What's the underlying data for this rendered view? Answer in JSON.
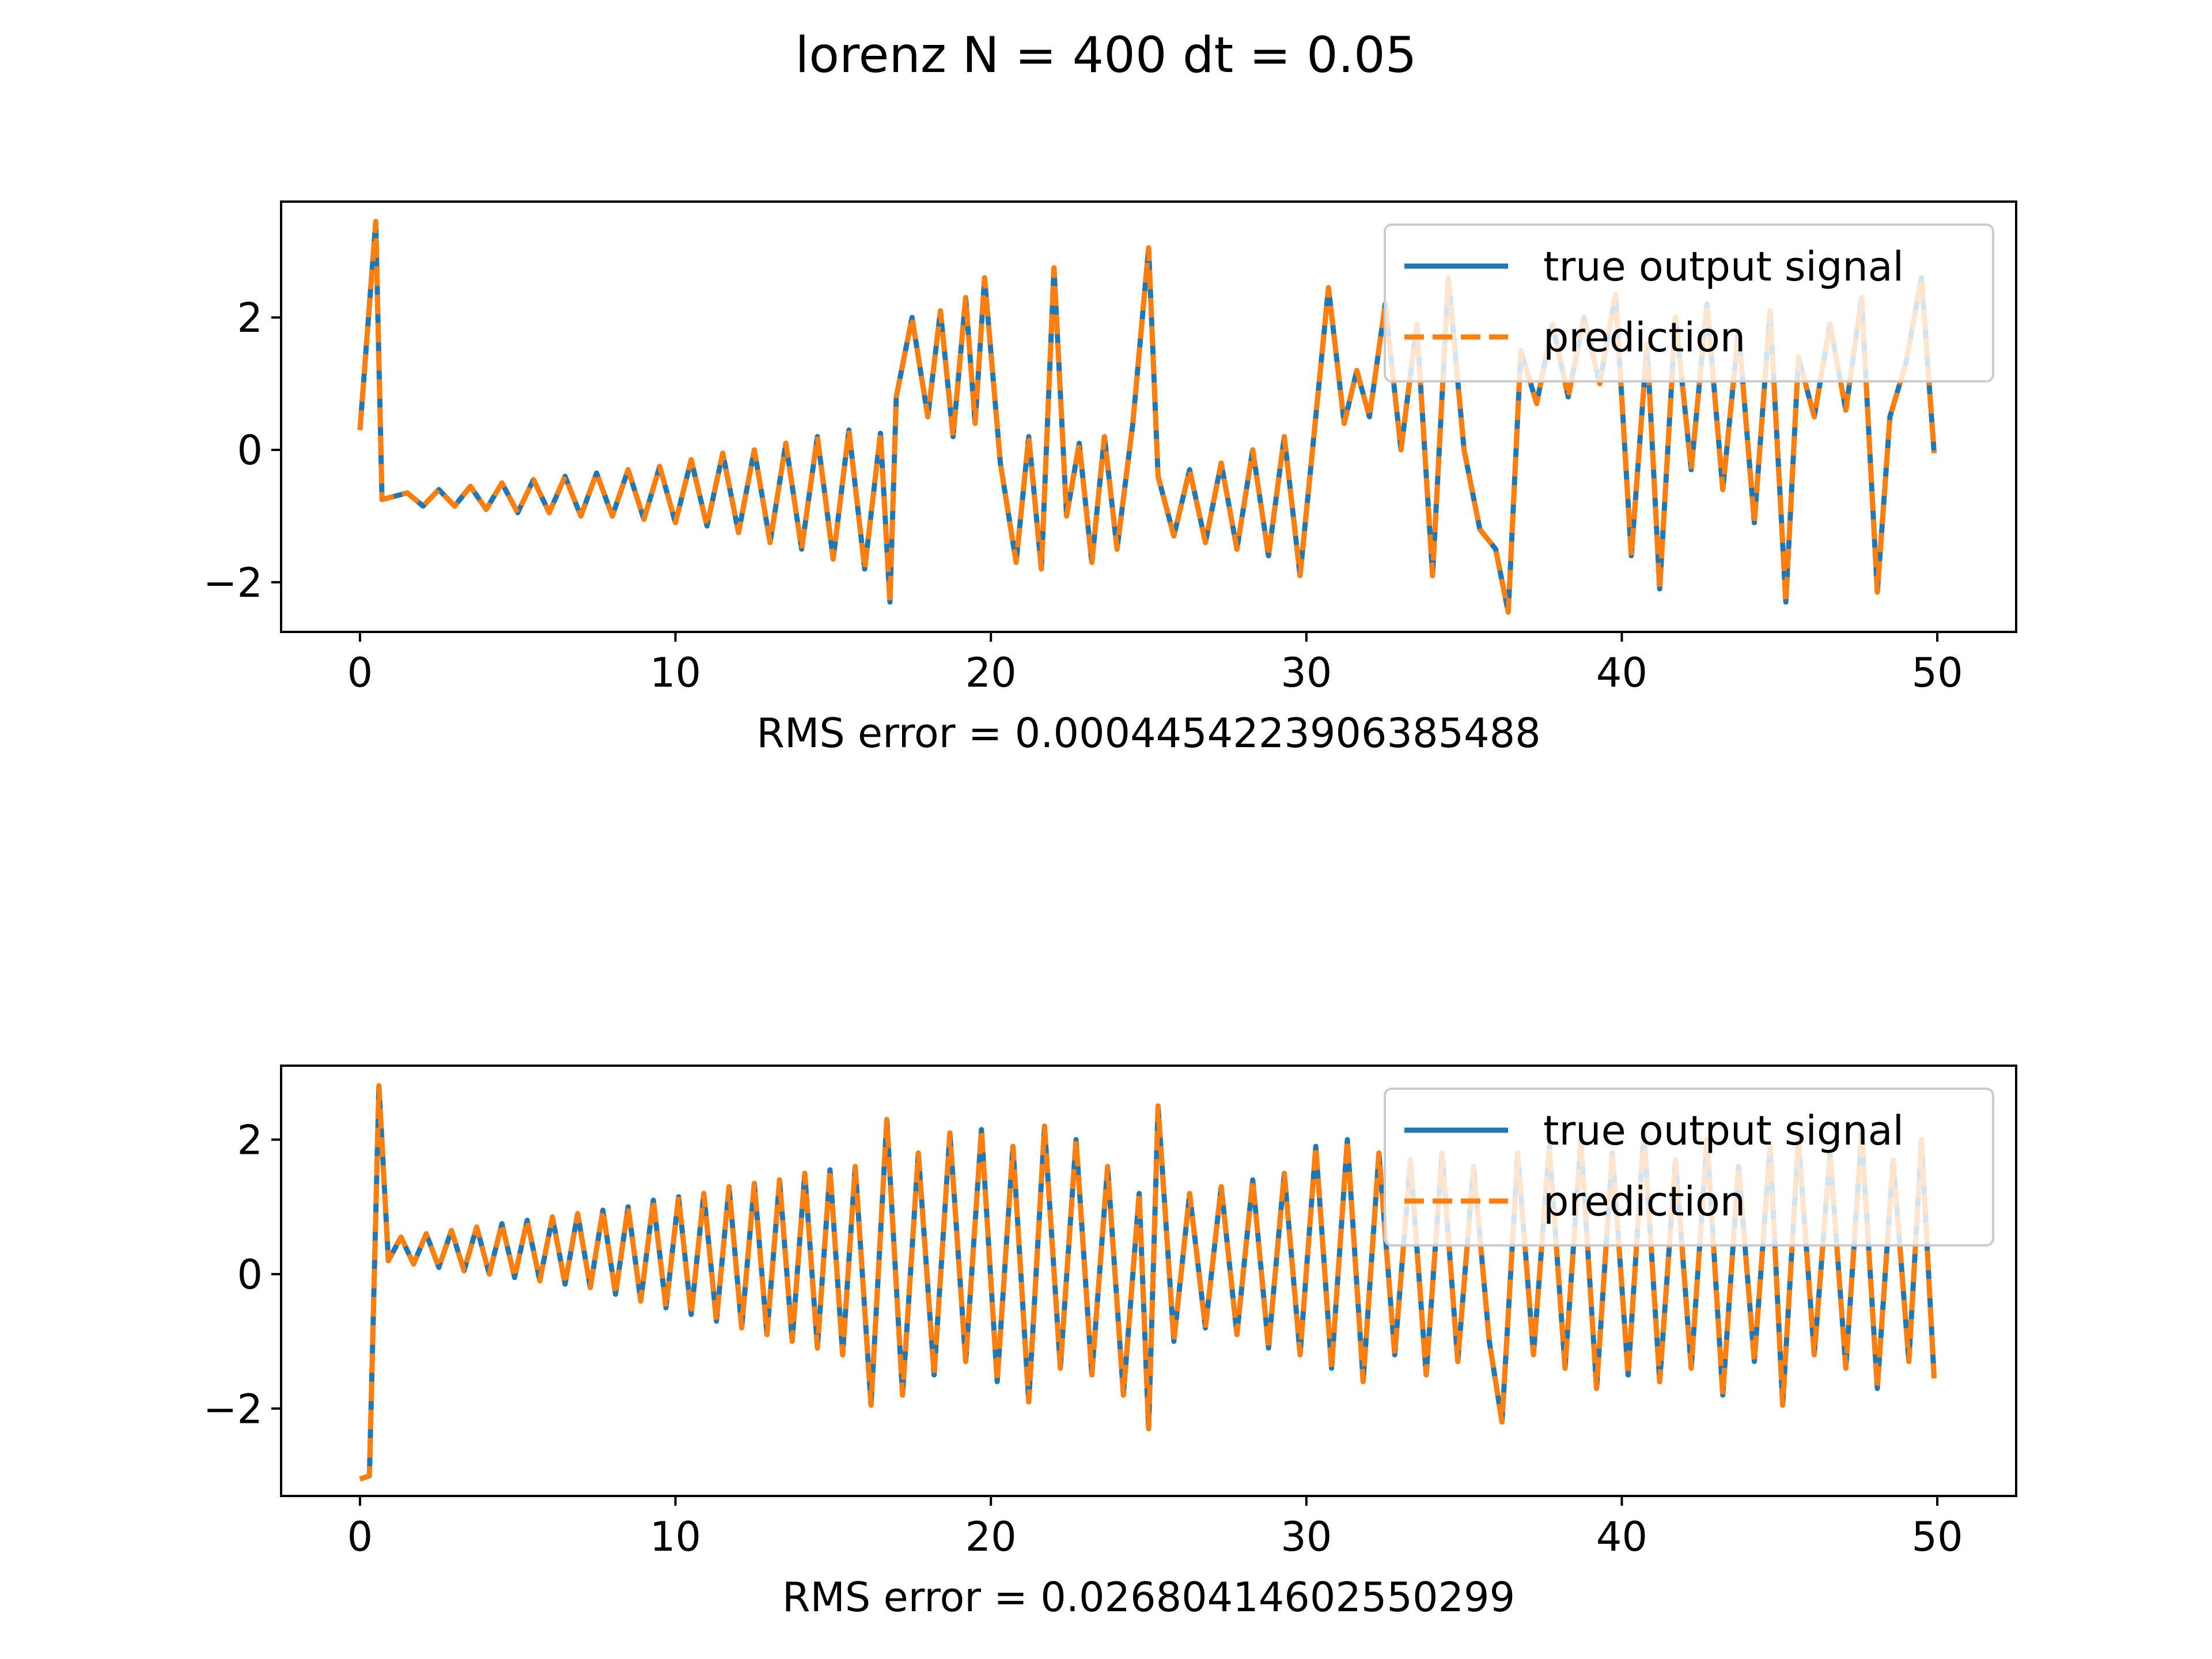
{
  "figure": {
    "title": "lorenz N = 400 dt = 0.05"
  },
  "colors": {
    "true_signal": "#1f77b4",
    "prediction": "#ff7f0e",
    "frame": "#000000",
    "legend_edge": "#cccccc"
  },
  "chart_data": [
    {
      "type": "line",
      "xlabel": "RMS error = 0.00044542239063854​88",
      "ylabel": "",
      "xlim": [
        -2.5,
        52.5
      ],
      "ylim": [
        -2.75,
        3.75
      ],
      "xticks": [
        0,
        10,
        20,
        30,
        40,
        50
      ],
      "xtick_labels": [
        "0",
        "10",
        "20",
        "30",
        "40",
        "50"
      ],
      "yticks": [
        -2,
        0,
        2
      ],
      "ytick_labels": [
        "−2",
        "0",
        "2"
      ],
      "grid": false,
      "legend_position": "upper-right",
      "legend": [
        "true output signal",
        "prediction"
      ],
      "x": [
        0.0,
        0.5,
        0.7,
        1.5,
        2.0,
        2.5,
        3.0,
        3.5,
        4.0,
        4.5,
        5.0,
        5.5,
        6.0,
        6.5,
        7.0,
        7.5,
        8.0,
        8.5,
        9.0,
        9.5,
        10.0,
        10.5,
        11.0,
        11.5,
        12.0,
        12.5,
        13.0,
        13.5,
        14.0,
        14.5,
        15.0,
        15.5,
        16.0,
        16.5,
        16.8,
        17.0,
        17.5,
        18.0,
        18.4,
        18.8,
        19.2,
        19.5,
        19.8,
        20.3,
        20.8,
        21.2,
        21.6,
        22.0,
        22.4,
        22.8,
        23.2,
        23.6,
        24.0,
        24.5,
        25.0,
        25.3,
        25.8,
        26.3,
        26.8,
        27.3,
        27.8,
        28.3,
        28.8,
        29.3,
        29.8,
        30.3,
        30.7,
        31.2,
        31.6,
        32.0,
        32.5,
        33.0,
        33.5,
        34.0,
        34.5,
        35.0,
        35.5,
        36.0,
        36.4,
        36.8,
        37.3,
        37.8,
        38.3,
        38.8,
        39.3,
        39.8,
        40.3,
        40.8,
        41.2,
        41.7,
        42.2,
        42.7,
        43.2,
        43.7,
        44.2,
        44.7,
        45.2,
        45.6,
        46.1,
        46.6,
        47.1,
        47.6,
        48.1,
        48.5,
        49.0,
        49.5,
        49.9
      ],
      "series": [
        {
          "name": "true output signal",
          "values": [
            0.3,
            3.45,
            -0.75,
            -0.65,
            -0.85,
            -0.6,
            -0.85,
            -0.55,
            -0.9,
            -0.5,
            -0.95,
            -0.45,
            -0.95,
            -0.4,
            -1.0,
            -0.35,
            -1.0,
            -0.3,
            -1.05,
            -0.25,
            -1.1,
            -0.15,
            -1.15,
            -0.05,
            -1.25,
            0.0,
            -1.4,
            0.1,
            -1.5,
            0.2,
            -1.65,
            0.3,
            -1.8,
            0.25,
            -2.3,
            0.8,
            2.0,
            0.5,
            2.1,
            0.2,
            2.3,
            0.4,
            2.6,
            -0.2,
            -1.7,
            0.2,
            -1.8,
            2.75,
            -1.0,
            0.1,
            -1.7,
            0.2,
            -1.5,
            0.4,
            3.05,
            -0.4,
            -1.3,
            -0.3,
            -1.4,
            -0.2,
            -1.5,
            0.0,
            -1.6,
            0.2,
            -1.9,
            0.5,
            2.45,
            0.4,
            1.2,
            0.5,
            2.2,
            0.0,
            1.9,
            -1.9,
            2.6,
            0.0,
            -1.2,
            -1.5,
            -2.45,
            1.5,
            0.7,
            1.9,
            0.8,
            2.0,
            1.0,
            2.35,
            -1.6,
            1.6,
            -2.1,
            2.0,
            -0.3,
            2.2,
            -0.6,
            1.8,
            -1.1,
            2.1,
            -2.3,
            1.4,
            0.5,
            1.9,
            0.6,
            2.3,
            -2.15,
            0.5,
            1.3,
            2.6,
            -0.05
          ]
        },
        {
          "name": "prediction",
          "values": [
            0.3,
            3.45,
            -0.75,
            -0.65,
            -0.85,
            -0.6,
            -0.85,
            -0.55,
            -0.9,
            -0.5,
            -0.95,
            -0.45,
            -0.95,
            -0.4,
            -1.0,
            -0.35,
            -1.0,
            -0.3,
            -1.05,
            -0.25,
            -1.1,
            -0.15,
            -1.15,
            -0.05,
            -1.25,
            0.0,
            -1.4,
            0.1,
            -1.5,
            0.2,
            -1.65,
            0.3,
            -1.8,
            0.25,
            -2.3,
            0.8,
            2.0,
            0.5,
            2.1,
            0.2,
            2.3,
            0.4,
            2.6,
            -0.2,
            -1.7,
            0.2,
            -1.8,
            2.75,
            -1.0,
            0.1,
            -1.7,
            0.2,
            -1.5,
            0.4,
            3.05,
            -0.4,
            -1.3,
            -0.3,
            -1.4,
            -0.2,
            -1.5,
            0.0,
            -1.6,
            0.2,
            -1.9,
            0.5,
            2.45,
            0.4,
            1.2,
            0.5,
            2.2,
            0.0,
            1.9,
            -1.9,
            2.6,
            0.0,
            -1.2,
            -1.5,
            -2.45,
            1.5,
            0.7,
            1.9,
            0.8,
            2.0,
            1.0,
            2.35,
            -1.6,
            1.6,
            -2.1,
            2.0,
            -0.3,
            2.2,
            -0.6,
            1.8,
            -1.1,
            2.1,
            -2.3,
            1.4,
            0.5,
            1.9,
            0.6,
            2.3,
            -2.15,
            0.5,
            1.3,
            2.6,
            -0.05
          ]
        }
      ]
    },
    {
      "type": "line",
      "xlabel": "RMS error = 0.02680414602550299",
      "ylabel": "",
      "xlim": [
        -2.5,
        52.5
      ],
      "ylim": [
        -3.3,
        3.1
      ],
      "xticks": [
        0,
        10,
        20,
        30,
        40,
        50
      ],
      "xtick_labels": [
        "0",
        "10",
        "20",
        "30",
        "40",
        "50"
      ],
      "yticks": [
        -2,
        0,
        2
      ],
      "ytick_labels": [
        "−2",
        "0",
        "2"
      ],
      "grid": false,
      "legend_position": "upper-right",
      "legend": [
        "true output signal",
        "prediction"
      ],
      "x": [
        0.0,
        0.3,
        0.6,
        0.9,
        1.3,
        1.7,
        2.1,
        2.5,
        2.9,
        3.3,
        3.7,
        4.1,
        4.5,
        4.9,
        5.3,
        5.7,
        6.1,
        6.5,
        6.9,
        7.3,
        7.7,
        8.1,
        8.5,
        8.9,
        9.3,
        9.7,
        10.1,
        10.5,
        10.9,
        11.3,
        11.7,
        12.1,
        12.5,
        12.9,
        13.3,
        13.7,
        14.1,
        14.5,
        14.9,
        15.3,
        15.7,
        16.2,
        16.7,
        17.2,
        17.7,
        18.2,
        18.7,
        19.2,
        19.7,
        20.2,
        20.7,
        21.2,
        21.7,
        22.2,
        22.7,
        23.2,
        23.7,
        24.2,
        24.7,
        25.0,
        25.3,
        25.8,
        26.3,
        26.8,
        27.3,
        27.8,
        28.3,
        28.8,
        29.3,
        29.8,
        30.3,
        30.8,
        31.3,
        31.8,
        32.3,
        32.8,
        33.3,
        33.8,
        34.3,
        34.8,
        35.3,
        35.8,
        36.2,
        36.7,
        37.2,
        37.7,
        38.2,
        38.7,
        39.2,
        39.7,
        40.2,
        40.7,
        41.2,
        41.7,
        42.2,
        42.7,
        43.2,
        43.7,
        44.2,
        44.7,
        45.1,
        45.6,
        46.1,
        46.6,
        47.1,
        47.6,
        48.1,
        48.6,
        49.1,
        49.5,
        49.9
      ],
      "series": [
        {
          "name": "true output signal",
          "values": [
            -3.05,
            -3.0,
            2.8,
            0.2,
            0.55,
            0.15,
            0.6,
            0.1,
            0.65,
            0.05,
            0.7,
            0.0,
            0.75,
            -0.05,
            0.8,
            -0.1,
            0.85,
            -0.15,
            0.9,
            -0.2,
            0.95,
            -0.3,
            1.0,
            -0.4,
            1.1,
            -0.5,
            1.15,
            -0.6,
            1.2,
            -0.7,
            1.3,
            -0.8,
            1.35,
            -0.9,
            1.4,
            -1.0,
            1.5,
            -1.1,
            1.55,
            -1.2,
            1.6,
            -1.95,
            2.3,
            -1.8,
            1.8,
            -1.5,
            2.1,
            -1.3,
            2.15,
            -1.6,
            1.9,
            -1.9,
            2.2,
            -1.4,
            2.0,
            -1.5,
            1.6,
            -1.8,
            1.2,
            -2.3,
            2.5,
            -1.0,
            1.2,
            -0.8,
            1.3,
            -0.9,
            1.4,
            -1.1,
            1.5,
            -1.2,
            1.9,
            -1.4,
            2.0,
            -1.6,
            1.8,
            -1.2,
            1.7,
            -1.5,
            1.8,
            -1.3,
            1.6,
            -1.0,
            -2.2,
            1.8,
            -1.2,
            1.9,
            -1.4,
            2.0,
            -1.7,
            1.8,
            -1.5,
            2.1,
            -1.6,
            1.7,
            -1.4,
            2.0,
            -1.8,
            1.6,
            -1.3,
            1.9,
            -1.95,
            2.0,
            -1.2,
            1.8,
            -1.4,
            2.1,
            -1.7,
            1.7,
            -1.3,
            2.0,
            -1.55
          ]
        },
        {
          "name": "prediction",
          "values": [
            -3.05,
            -3.0,
            2.8,
            0.2,
            0.55,
            0.15,
            0.6,
            0.1,
            0.65,
            0.05,
            0.7,
            0.0,
            0.75,
            -0.05,
            0.8,
            -0.1,
            0.85,
            -0.15,
            0.9,
            -0.2,
            0.95,
            -0.3,
            1.0,
            -0.4,
            1.1,
            -0.5,
            1.15,
            -0.6,
            1.2,
            -0.7,
            1.3,
            -0.8,
            1.35,
            -0.9,
            1.4,
            -1.0,
            1.5,
            -1.1,
            1.55,
            -1.2,
            1.6,
            -1.95,
            2.3,
            -1.8,
            1.8,
            -1.5,
            2.1,
            -1.3,
            2.15,
            -1.6,
            1.9,
            -1.9,
            2.2,
            -1.4,
            2.0,
            -1.5,
            1.6,
            -1.8,
            1.2,
            -2.3,
            2.5,
            -1.0,
            1.2,
            -0.8,
            1.3,
            -0.9,
            1.4,
            -1.1,
            1.5,
            -1.2,
            1.9,
            -1.4,
            2.0,
            -1.6,
            1.8,
            -1.2,
            1.7,
            -1.5,
            1.8,
            -1.3,
            1.6,
            -1.0,
            -2.2,
            1.8,
            -1.2,
            1.9,
            -1.4,
            2.0,
            -1.7,
            1.8,
            -1.5,
            2.1,
            -1.6,
            1.7,
            -1.4,
            2.0,
            -1.8,
            1.6,
            -1.3,
            1.9,
            -1.95,
            2.0,
            -1.2,
            1.8,
            -1.4,
            2.1,
            -1.7,
            1.7,
            -1.3,
            2.0,
            -1.55
          ]
        }
      ]
    }
  ]
}
